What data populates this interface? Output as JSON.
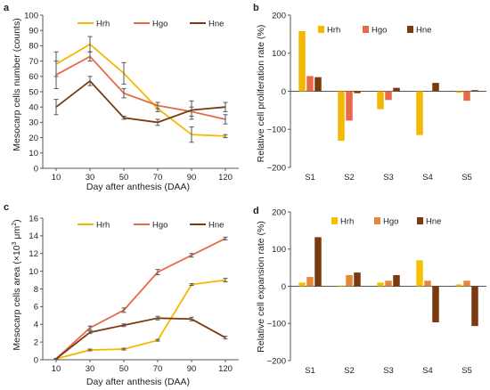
{
  "chart_data": [
    {
      "panel": "a",
      "type": "line",
      "x": [
        "10",
        "30",
        "50",
        "70",
        "90",
        "120"
      ],
      "xlabel": "Day after anthesis (DAA)",
      "ylabel": "Mesocarp cells number  (counts)",
      "ylim": [
        0,
        100
      ],
      "yticks": [
        "0",
        "10",
        "20",
        "30",
        "40",
        "50",
        "60",
        "70",
        "80",
        "90",
        "100"
      ],
      "legend": "top",
      "series": [
        {
          "name": "Hrh",
          "color": "#F5B800",
          "values": [
            68,
            81,
            62,
            39,
            22,
            21
          ],
          "err": [
            8,
            5,
            7,
            2,
            5,
            1
          ]
        },
        {
          "name": "Hgo",
          "color": "#E8694A",
          "values": [
            61,
            73,
            49,
            41,
            37,
            32
          ],
          "err": [
            9,
            3,
            3,
            2,
            3,
            3
          ]
        },
        {
          "name": "Hne",
          "color": "#7B3A10",
          "values": [
            40,
            57,
            33,
            30,
            38,
            40
          ],
          "err": [
            5,
            3,
            1,
            2,
            6,
            3
          ]
        }
      ]
    },
    {
      "panel": "b",
      "type": "bar",
      "categories": [
        "S1",
        "S2",
        "S3",
        "S4",
        "S5"
      ],
      "ylabel": "Relative cell proliferation rate  (%)",
      "ylim": [
        -200,
        200
      ],
      "yticks": [
        "200",
        "100",
        "0",
        "−100",
        "−200"
      ],
      "legend": "top",
      "series": [
        {
          "name": "Hrh",
          "color": "#F5B800",
          "values": [
            158,
            -130,
            -47,
            -115,
            -4
          ]
        },
        {
          "name": "Hgo",
          "color": "#E8694A",
          "values": [
            40,
            -77,
            -23,
            0,
            -25
          ]
        },
        {
          "name": "Hne",
          "color": "#7B3A10",
          "values": [
            37,
            -5,
            9,
            22,
            3
          ]
        }
      ]
    },
    {
      "panel": "c",
      "type": "line",
      "x": [
        "10",
        "30",
        "50",
        "70",
        "90",
        "120"
      ],
      "xlabel": "Day after anthesis (DAA)",
      "ylabel_main": "Mesocarp cells area (×10",
      "ylabel_sup1": "3",
      "ylabel_mid": " μm",
      "ylabel_sup2": "2",
      "ylabel_end": ")",
      "ylim": [
        0,
        16
      ],
      "yticks": [
        "0",
        "2",
        "4",
        "6",
        "8",
        "10",
        "12",
        "14",
        "16"
      ],
      "legend": "top",
      "series": [
        {
          "name": "Hrh",
          "color": "#F5B800",
          "values": [
            0.1,
            1.1,
            1.2,
            2.2,
            8.5,
            9.0
          ],
          "err": [
            0.05,
            0.1,
            0.1,
            0.1,
            0.1,
            0.2
          ]
        },
        {
          "name": "Hgo",
          "color": "#E8694A",
          "values": [
            0.1,
            3.6,
            5.6,
            9.9,
            11.8,
            13.7
          ],
          "err": [
            0.05,
            0.2,
            0.25,
            0.3,
            0.2,
            0.15
          ]
        },
        {
          "name": "Hne",
          "color": "#7B3A10",
          "values": [
            0.1,
            3.1,
            3.9,
            4.7,
            4.6,
            2.5
          ],
          "err": [
            0.05,
            0.15,
            0.15,
            0.2,
            0.2,
            0.15
          ]
        }
      ]
    },
    {
      "panel": "d",
      "type": "bar",
      "categories": [
        "S1",
        "S2",
        "S3",
        "S4",
        "S5"
      ],
      "ylabel": "Relative cell expansion rate  (%)",
      "ylim": [
        -200,
        200
      ],
      "yticks": [
        "200",
        "100",
        "0",
        "−100",
        "−200"
      ],
      "legend": "top",
      "series": [
        {
          "name": "Hrh",
          "color": "#F5C000",
          "values": [
            10,
            2,
            10,
            70,
            5
          ]
        },
        {
          "name": "Hgo",
          "color": "#E8873A",
          "values": [
            25,
            30,
            15,
            15,
            15
          ]
        },
        {
          "name": "Hne",
          "color": "#7B3A10",
          "values": [
            132,
            37,
            30,
            -97,
            -107
          ]
        }
      ]
    }
  ]
}
